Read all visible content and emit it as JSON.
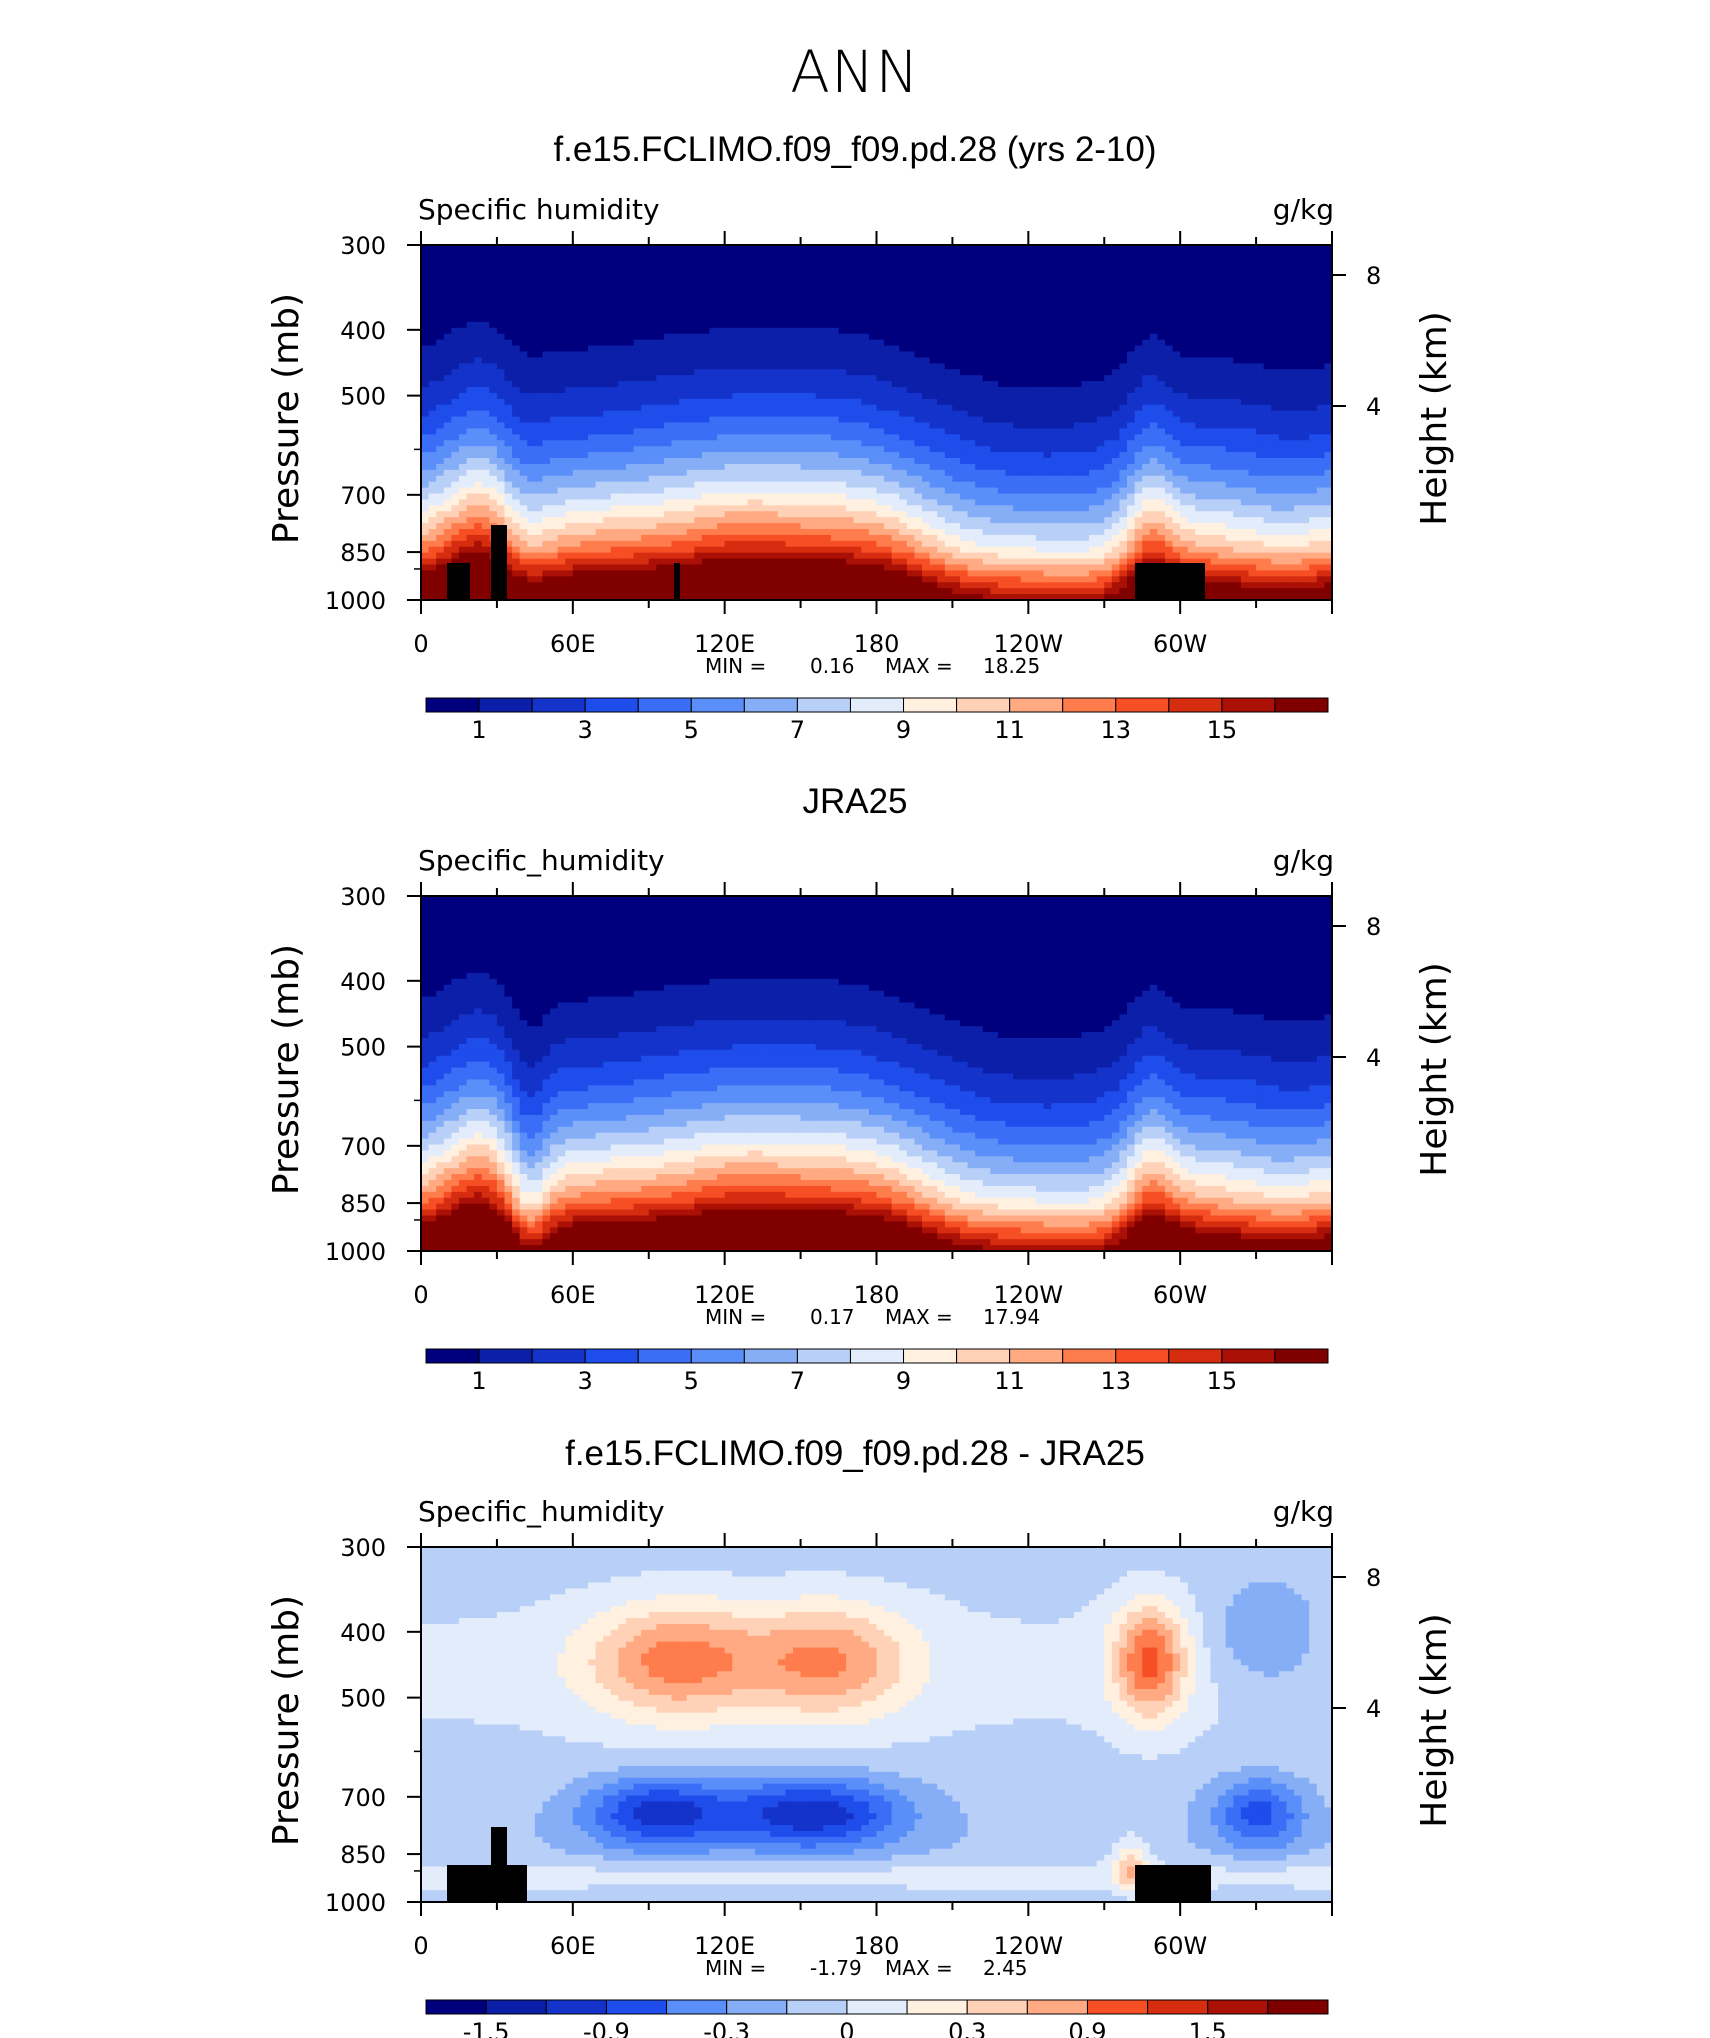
{
  "page": {
    "title": "ANN"
  },
  "panels": [
    {
      "title": "f.e15.FCLIMO.f09_f09.pd.28 (yrs 2-10)",
      "variable": "Specific humidity",
      "units": "g/kg",
      "min_label": "MIN =",
      "min_value": "0.16",
      "max_label": "MAX =",
      "max_value": "18.25"
    },
    {
      "title": "JRA25",
      "variable": "Specific_humidity",
      "units": "g/kg",
      "min_label": "MIN =",
      "min_value": "0.17",
      "max_label": "MAX =",
      "max_value": "17.94"
    },
    {
      "title": "f.e15.FCLIMO.f09_f09.pd.28 - JRA25",
      "variable": "Specific_humidity",
      "units": "g/kg",
      "min_label": "MIN =",
      "min_value": "-1.79",
      "max_label": "MAX =",
      "max_value": "2.45"
    }
  ],
  "chart_data": [
    {
      "type": "heatmap",
      "title": "f.e15.FCLIMO.f09_f09.pd.28 (yrs 2-10)",
      "ylabel": "Pressure (mb)",
      "y2label": "Height (km)",
      "xticks": [
        "0",
        "60E",
        "120E",
        "180",
        "120W",
        "60W"
      ],
      "yticks": [
        "300",
        "400",
        "500",
        "700",
        "850",
        "1000"
      ],
      "y2ticks": [
        "8",
        "4"
      ],
      "xlim": [
        0,
        360
      ],
      "ylim": [
        1000,
        300
      ],
      "yscale": "log",
      "colorbar": {
        "levels": [
          1,
          2,
          3,
          4,
          5,
          6,
          7,
          8,
          9,
          10,
          11,
          12,
          13,
          14,
          15,
          16
        ],
        "labels": [
          "1",
          "3",
          "5",
          "7",
          "9",
          "11",
          "13",
          "15"
        ],
        "colors": [
          "#00007f",
          "#0b1fa8",
          "#1433cb",
          "#1f4dec",
          "#3a6ef6",
          "#5a8ef8",
          "#86aef7",
          "#b8cff8",
          "#e3ecfb",
          "#fff0e0",
          "#ffd2b8",
          "#ffaa82",
          "#ff7c4c",
          "#f74f25",
          "#d62c10",
          "#aa1005",
          "#800000"
        ]
      },
      "shading": "base",
      "min": 0.16,
      "max": 18.25
    },
    {
      "type": "heatmap",
      "title": "JRA25",
      "ylabel": "Pressure (mb)",
      "y2label": "Height (km)",
      "xticks": [
        "0",
        "60E",
        "120E",
        "180",
        "120W",
        "60W"
      ],
      "yticks": [
        "300",
        "400",
        "500",
        "700",
        "850",
        "1000"
      ],
      "y2ticks": [
        "8",
        "4"
      ],
      "xlim": [
        0,
        360
      ],
      "ylim": [
        1000,
        300
      ],
      "yscale": "log",
      "colorbar": {
        "levels": [
          1,
          2,
          3,
          4,
          5,
          6,
          7,
          8,
          9,
          10,
          11,
          12,
          13,
          14,
          15,
          16
        ],
        "labels": [
          "1",
          "3",
          "5",
          "7",
          "9",
          "11",
          "13",
          "15"
        ],
        "colors": [
          "#00007f",
          "#0b1fa8",
          "#1433cb",
          "#1f4dec",
          "#3a6ef6",
          "#5a8ef8",
          "#86aef7",
          "#b8cff8",
          "#e3ecfb",
          "#fff0e0",
          "#ffd2b8",
          "#ffaa82",
          "#ff7c4c",
          "#f74f25",
          "#d62c10",
          "#aa1005",
          "#800000"
        ]
      },
      "shading": "base",
      "min": 0.17,
      "max": 17.94
    },
    {
      "type": "heatmap",
      "title": "f.e15.FCLIMO.f09_f09.pd.28 - JRA25",
      "ylabel": "Pressure (mb)",
      "y2label": "Height (km)",
      "xticks": [
        "0",
        "60E",
        "120E",
        "180",
        "120W",
        "60W"
      ],
      "yticks": [
        "300",
        "400",
        "500",
        "700",
        "850",
        "1000"
      ],
      "y2ticks": [
        "8",
        "4"
      ],
      "xlim": [
        0,
        360
      ],
      "ylim": [
        1000,
        300
      ],
      "yscale": "log",
      "colorbar": {
        "levels": [
          -1.8,
          -1.5,
          -1.2,
          -0.9,
          -0.6,
          -0.3,
          0,
          0.3,
          0.6,
          0.9,
          1.2,
          1.5,
          1.8,
          2.1
        ],
        "labels": [
          "-1.5",
          "-0.9",
          "-0.3",
          "0",
          "0.3",
          "0.9",
          "1.5"
        ],
        "colors": [
          "#00007f",
          "#0b1fa8",
          "#1433cb",
          "#1f4dec",
          "#3a6ef6",
          "#5a8ef8",
          "#86aef7",
          "#b8cff8",
          "#e3ecfb",
          "#fff0e0",
          "#ffd2b8",
          "#ffaa82",
          "#ff7c4c",
          "#f74f25",
          "#d62c10",
          "#aa1005",
          "#800000"
        ]
      },
      "shading": "diff",
      "min": -1.79,
      "max": 2.45
    }
  ]
}
